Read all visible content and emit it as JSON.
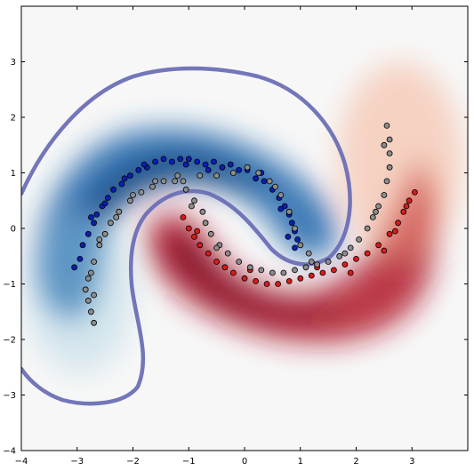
{
  "chart_data": {
    "type": "scatter",
    "title": "",
    "xlabel": "",
    "ylabel": "",
    "xlim": [
      -4,
      4
    ],
    "ylim": [
      -4,
      4
    ],
    "xticks": [
      -4,
      -3,
      -2,
      -1,
      0,
      1,
      2,
      3
    ],
    "yticks": [
      -4,
      -3,
      -2,
      -1,
      0,
      1,
      2,
      3
    ],
    "xtick_labels": [
      "−4",
      "−3",
      "−2",
      "−1",
      "0",
      "1",
      "2",
      "3"
    ],
    "ytick_labels": [
      "−4",
      "−3",
      "−2",
      "−1",
      "0",
      "1",
      "2",
      "3"
    ],
    "grid": false,
    "legend": "none",
    "background": "decision-function heatmap (blue = class 0 side, red = class 1 side), white near 0",
    "decision_boundary_color": "#6b6fb5",
    "series": [
      {
        "color": "#0a1fb8",
        "points": [
          [
            -3.05,
            -0.7
          ],
          [
            -2.95,
            -0.55
          ],
          [
            -2.9,
            -0.3
          ],
          [
            -2.8,
            -0.1
          ],
          [
            -2.7,
            0.1
          ],
          [
            -2.65,
            0.25
          ],
          [
            -2.55,
            0.4
          ],
          [
            -2.45,
            0.55
          ],
          [
            -2.35,
            0.7
          ],
          [
            -2.2,
            0.8
          ],
          [
            -2.05,
            0.95
          ],
          [
            -1.9,
            1.05
          ],
          [
            -1.75,
            1.1
          ],
          [
            -1.6,
            1.2
          ],
          [
            -1.45,
            1.25
          ],
          [
            -1.3,
            1.2
          ],
          [
            -1.15,
            1.25
          ],
          [
            -1.0,
            1.25
          ],
          [
            -0.85,
            1.2
          ],
          [
            -0.7,
            1.15
          ],
          [
            -0.55,
            1.2
          ],
          [
            -0.4,
            1.1
          ],
          [
            -0.25,
            1.15
          ],
          [
            -0.1,
            1.05
          ],
          [
            0.05,
            1.05
          ],
          [
            0.2,
            0.9
          ],
          [
            0.35,
            0.85
          ],
          [
            0.5,
            0.7
          ],
          [
            0.62,
            0.55
          ],
          [
            0.72,
            0.4
          ],
          [
            0.8,
            0.25
          ],
          [
            0.85,
            0.1
          ],
          [
            0.9,
            -0.05
          ],
          [
            0.95,
            -0.2
          ],
          [
            0.9,
            -0.35
          ],
          [
            -2.75,
            0.2
          ],
          [
            -2.5,
            0.45
          ],
          [
            -2.15,
            0.9
          ],
          [
            -1.8,
            1.15
          ],
          [
            -1.05,
            1.15
          ],
          [
            -0.65,
            1.05
          ],
          [
            0.3,
            1.0
          ],
          [
            0.65,
            0.35
          ],
          [
            0.78,
            -0.15
          ]
        ]
      },
      {
        "color": "#d91a1a",
        "points": [
          [
            -1.1,
            0.2
          ],
          [
            -1.0,
            0.0
          ],
          [
            -0.9,
            -0.15
          ],
          [
            -0.8,
            -0.3
          ],
          [
            -0.65,
            -0.45
          ],
          [
            -0.5,
            -0.6
          ],
          [
            -0.35,
            -0.7
          ],
          [
            -0.2,
            -0.8
          ],
          [
            0.0,
            -0.9
          ],
          [
            0.2,
            -0.95
          ],
          [
            0.4,
            -1.0
          ],
          [
            0.6,
            -1.0
          ],
          [
            0.8,
            -0.95
          ],
          [
            1.0,
            -0.9
          ],
          [
            1.2,
            -0.85
          ],
          [
            1.4,
            -0.8
          ],
          [
            1.6,
            -0.75
          ],
          [
            1.8,
            -0.65
          ],
          [
            2.0,
            -0.55
          ],
          [
            2.2,
            -0.45
          ],
          [
            2.4,
            -0.3
          ],
          [
            2.6,
            -0.1
          ],
          [
            2.75,
            0.1
          ],
          [
            2.85,
            0.3
          ],
          [
            2.95,
            0.5
          ],
          [
            3.05,
            0.65
          ],
          [
            2.9,
            0.4
          ],
          [
            2.7,
            -0.05
          ],
          [
            1.3,
            -0.7
          ],
          [
            -0.85,
            -0.05
          ],
          [
            0.1,
            -0.75
          ],
          [
            1.9,
            -0.8
          ],
          [
            2.5,
            -0.4
          ]
        ]
      },
      {
        "color": "#8c8c8c",
        "points": [
          [
            -2.7,
            -1.7
          ],
          [
            -2.75,
            -1.5
          ],
          [
            -2.8,
            -1.3
          ],
          [
            -2.85,
            -1.1
          ],
          [
            -2.8,
            -0.9
          ],
          [
            -2.7,
            -0.6
          ],
          [
            -2.6,
            -0.3
          ],
          [
            -2.5,
            -0.1
          ],
          [
            -2.4,
            0.1
          ],
          [
            -2.25,
            0.3
          ],
          [
            -2.05,
            0.5
          ],
          [
            -1.85,
            0.65
          ],
          [
            -1.65,
            0.75
          ],
          [
            -1.45,
            0.85
          ],
          [
            -1.25,
            0.85
          ],
          [
            -1.05,
            0.7
          ],
          [
            -0.9,
            0.5
          ],
          [
            -0.75,
            0.3
          ],
          [
            -0.7,
            0.1
          ],
          [
            -0.6,
            -0.1
          ],
          [
            -0.45,
            -0.3
          ],
          [
            -0.3,
            -0.45
          ],
          [
            -0.1,
            -0.6
          ],
          [
            0.1,
            -0.7
          ],
          [
            0.3,
            -0.75
          ],
          [
            0.5,
            -0.8
          ],
          [
            0.7,
            -0.8
          ],
          [
            0.9,
            -0.75
          ],
          [
            1.1,
            -0.7
          ],
          [
            1.3,
            -0.65
          ],
          [
            1.5,
            -0.6
          ],
          [
            1.7,
            -0.5
          ],
          [
            1.9,
            -0.35
          ],
          [
            2.05,
            -0.2
          ],
          [
            2.2,
            0.0
          ],
          [
            2.3,
            0.2
          ],
          [
            2.4,
            0.4
          ],
          [
            2.5,
            0.6
          ],
          [
            2.55,
            0.85
          ],
          [
            2.6,
            1.1
          ],
          [
            2.6,
            1.35
          ],
          [
            2.6,
            1.6
          ],
          [
            2.55,
            1.85
          ],
          [
            0.8,
            0.3
          ],
          [
            0.65,
            0.6
          ],
          [
            0.45,
            0.85
          ],
          [
            0.25,
            1.0
          ],
          [
            0.05,
            1.1
          ],
          [
            -0.2,
            1.0
          ],
          [
            -0.5,
            0.95
          ],
          [
            -0.8,
            0.95
          ],
          [
            -1.2,
            0.95
          ],
          [
            -1.6,
            0.85
          ],
          [
            -2.0,
            0.6
          ],
          [
            -2.3,
            0.2
          ],
          [
            -2.6,
            -0.2
          ],
          [
            -2.75,
            -0.8
          ],
          [
            0.9,
            0.0
          ],
          [
            1.0,
            -0.3
          ],
          [
            1.15,
            -0.45
          ],
          [
            -0.95,
            0.4
          ],
          [
            -0.5,
            -0.35
          ],
          [
            2.35,
            0.3
          ],
          [
            2.5,
            1.5
          ],
          [
            -2.7,
            -1.2
          ],
          [
            -1.1,
            0.85
          ],
          [
            0.55,
            0.75
          ],
          [
            1.2,
            -0.6
          ],
          [
            1.8,
            -0.45
          ]
        ]
      }
    ]
  }
}
